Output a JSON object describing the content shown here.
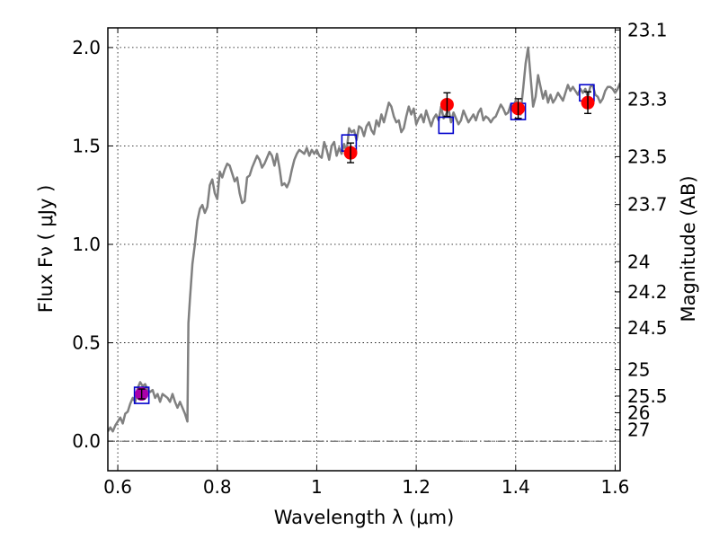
{
  "chart_data": {
    "type": "line",
    "xlabel": "Wavelength  λ (μm)",
    "ylabel": "Flux  Fν  ( μJy )",
    "ylabel2": "Magnitude (AB)",
    "xlim": [
      0.58,
      1.61
    ],
    "ylim": [
      -0.15,
      2.1
    ],
    "grid": true,
    "x_ticks": [
      0.6,
      0.8,
      1.0,
      1.2,
      1.4,
      1.6
    ],
    "x_tick_labels": [
      "0.6",
      "0.8",
      "1",
      "1.2",
      "1.4",
      "1.6"
    ],
    "y_ticks": [
      0.0,
      0.5,
      1.0,
      1.5,
      2.0
    ],
    "y_tick_labels": [
      "0.0",
      "0.5",
      "1.0",
      "1.5",
      "2.0"
    ],
    "mag_ticks": [
      23.1,
      23.3,
      23.5,
      23.7,
      24,
      24.2,
      24.5,
      25,
      25.5,
      26,
      27
    ],
    "mag_tick_labels": [
      "23.1",
      "23.3",
      "23.5",
      "23.7",
      "24",
      "24.2",
      "24.5",
      "25",
      "25.5",
      "26",
      "27"
    ],
    "zero_line": 0.0,
    "sed_color": "#808080",
    "sed": {
      "x": [
        0.58,
        0.585,
        0.59,
        0.595,
        0.6,
        0.605,
        0.61,
        0.615,
        0.62,
        0.625,
        0.63,
        0.635,
        0.64,
        0.645,
        0.65,
        0.655,
        0.66,
        0.665,
        0.67,
        0.675,
        0.68,
        0.685,
        0.69,
        0.695,
        0.7,
        0.705,
        0.71,
        0.715,
        0.72,
        0.725,
        0.73,
        0.735,
        0.74,
        0.742,
        0.745,
        0.75,
        0.755,
        0.76,
        0.765,
        0.77,
        0.775,
        0.78,
        0.785,
        0.79,
        0.795,
        0.8,
        0.805,
        0.81,
        0.815,
        0.82,
        0.825,
        0.83,
        0.835,
        0.84,
        0.845,
        0.85,
        0.855,
        0.86,
        0.865,
        0.87,
        0.875,
        0.88,
        0.885,
        0.89,
        0.895,
        0.9,
        0.905,
        0.91,
        0.915,
        0.92,
        0.925,
        0.93,
        0.935,
        0.94,
        0.945,
        0.95,
        0.955,
        0.96,
        0.965,
        0.97,
        0.975,
        0.98,
        0.985,
        0.99,
        0.995,
        1.0,
        1.005,
        1.01,
        1.015,
        1.02,
        1.025,
        1.03,
        1.035,
        1.04,
        1.045,
        1.05,
        1.055,
        1.06,
        1.065,
        1.07,
        1.075,
        1.08,
        1.085,
        1.09,
        1.095,
        1.1,
        1.105,
        1.11,
        1.115,
        1.12,
        1.125,
        1.13,
        1.135,
        1.14,
        1.145,
        1.15,
        1.155,
        1.16,
        1.165,
        1.17,
        1.175,
        1.18,
        1.185,
        1.19,
        1.195,
        1.2,
        1.205,
        1.21,
        1.215,
        1.22,
        1.225,
        1.23,
        1.235,
        1.24,
        1.245,
        1.25,
        1.255,
        1.26,
        1.265,
        1.27,
        1.275,
        1.28,
        1.285,
        1.29,
        1.295,
        1.3,
        1.305,
        1.31,
        1.315,
        1.32,
        1.325,
        1.33,
        1.335,
        1.34,
        1.345,
        1.35,
        1.355,
        1.36,
        1.365,
        1.37,
        1.375,
        1.38,
        1.385,
        1.39,
        1.395,
        1.4,
        1.405,
        1.41,
        1.412,
        1.415,
        1.42,
        1.425,
        1.43,
        1.435,
        1.44,
        1.445,
        1.45,
        1.455,
        1.46,
        1.465,
        1.47,
        1.475,
        1.48,
        1.485,
        1.49,
        1.495,
        1.5,
        1.505,
        1.51,
        1.515,
        1.52,
        1.525,
        1.53,
        1.535,
        1.54,
        1.545,
        1.55,
        1.555,
        1.56,
        1.565,
        1.57,
        1.575,
        1.58,
        1.585,
        1.59,
        1.595,
        1.6,
        1.605,
        1.61
      ],
      "y": [
        0.05,
        0.07,
        0.05,
        0.08,
        0.1,
        0.12,
        0.09,
        0.14,
        0.15,
        0.19,
        0.22,
        0.2,
        0.27,
        0.3,
        0.28,
        0.29,
        0.26,
        0.25,
        0.26,
        0.22,
        0.24,
        0.2,
        0.24,
        0.23,
        0.22,
        0.2,
        0.24,
        0.2,
        0.17,
        0.2,
        0.17,
        0.14,
        0.1,
        0.6,
        0.72,
        0.9,
        1.0,
        1.12,
        1.18,
        1.2,
        1.16,
        1.19,
        1.3,
        1.33,
        1.26,
        1.23,
        1.37,
        1.34,
        1.38,
        1.41,
        1.4,
        1.36,
        1.32,
        1.34,
        1.26,
        1.21,
        1.22,
        1.34,
        1.35,
        1.39,
        1.42,
        1.45,
        1.43,
        1.39,
        1.41,
        1.44,
        1.47,
        1.45,
        1.4,
        1.46,
        1.39,
        1.3,
        1.31,
        1.29,
        1.32,
        1.38,
        1.43,
        1.46,
        1.48,
        1.47,
        1.46,
        1.49,
        1.45,
        1.48,
        1.46,
        1.48,
        1.45,
        1.44,
        1.52,
        1.48,
        1.43,
        1.5,
        1.52,
        1.45,
        1.49,
        1.46,
        1.51,
        1.47,
        1.59,
        1.57,
        1.58,
        1.53,
        1.6,
        1.59,
        1.55,
        1.6,
        1.62,
        1.58,
        1.56,
        1.63,
        1.6,
        1.66,
        1.62,
        1.67,
        1.72,
        1.7,
        1.65,
        1.62,
        1.63,
        1.57,
        1.59,
        1.65,
        1.7,
        1.66,
        1.69,
        1.61,
        1.64,
        1.66,
        1.62,
        1.68,
        1.64,
        1.6,
        1.64,
        1.66,
        1.63,
        1.7,
        1.64,
        1.66,
        1.69,
        1.62,
        1.67,
        1.64,
        1.61,
        1.63,
        1.68,
        1.65,
        1.62,
        1.64,
        1.66,
        1.63,
        1.67,
        1.69,
        1.63,
        1.65,
        1.64,
        1.62,
        1.64,
        1.65,
        1.68,
        1.71,
        1.69,
        1.66,
        1.67,
        1.71,
        1.7,
        1.73,
        1.68,
        1.66,
        1.72,
        1.79,
        1.92,
        2.0,
        1.85,
        1.7,
        1.75,
        1.86,
        1.8,
        1.74,
        1.78,
        1.72,
        1.76,
        1.72,
        1.74,
        1.77,
        1.75,
        1.73,
        1.77,
        1.81,
        1.78,
        1.8,
        1.78,
        1.76,
        1.79,
        1.77,
        1.79,
        1.75,
        1.8,
        1.81,
        1.76,
        1.75,
        1.72,
        1.74,
        1.78,
        1.8,
        1.8,
        1.79,
        1.77,
        1.79,
        1.82
      ]
    },
    "observed": {
      "color": "#ff0000",
      "errbar_color": "#000000",
      "points": [
        {
          "x": 1.068,
          "y": 1.465,
          "err": 0.05
        },
        {
          "x": 1.262,
          "y": 1.71,
          "err": 0.06
        },
        {
          "x": 1.405,
          "y": 1.69,
          "err": 0.05
        },
        {
          "x": 1.545,
          "y": 1.72,
          "err": 0.055
        }
      ]
    },
    "observed_alt": {
      "color": "#aa00aa",
      "points": [
        {
          "x": 0.648,
          "y": 0.24,
          "err": 0.025
        }
      ]
    },
    "model_boxes": {
      "color": "#0000cc",
      "points": [
        {
          "x": 0.648,
          "y": 0.233
        },
        {
          "x": 1.065,
          "y": 1.515
        },
        {
          "x": 1.26,
          "y": 1.605
        },
        {
          "x": 1.405,
          "y": 1.675
        },
        {
          "x": 1.543,
          "y": 1.77
        }
      ]
    }
  }
}
